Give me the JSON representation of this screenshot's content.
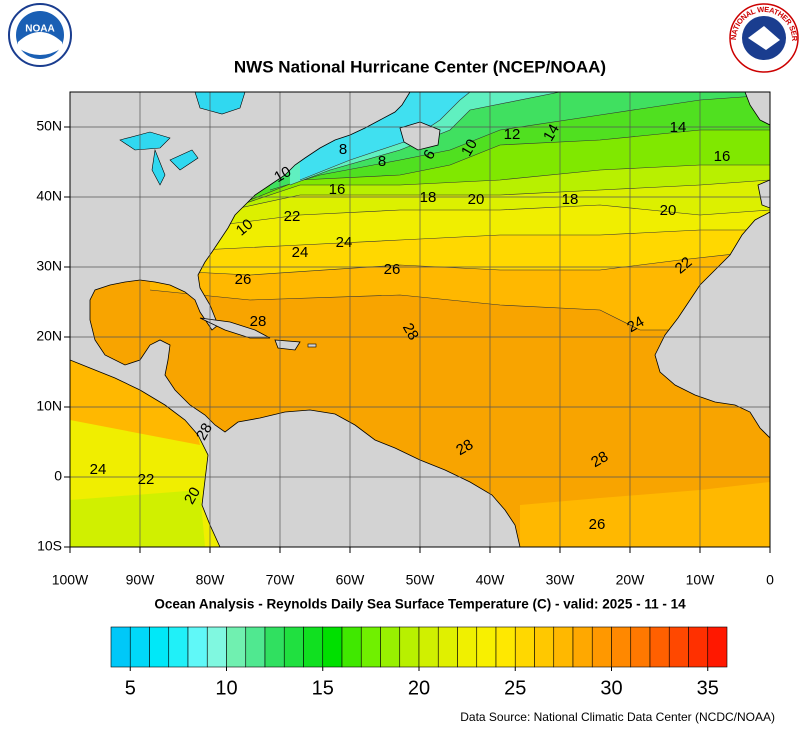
{
  "header": {
    "title": "NWS National Hurricane Center (NCEP/NOAA)",
    "noaa_logo": "NOAA",
    "nws_logo": "NATIONAL WEATHER SERVICE"
  },
  "map": {
    "xlim": [
      -100,
      0
    ],
    "ylim": [
      -10,
      55
    ],
    "xticks": [
      {
        "value": -100,
        "label": "100W"
      },
      {
        "value": -90,
        "label": "90W"
      },
      {
        "value": -80,
        "label": "80W"
      },
      {
        "value": -70,
        "label": "70W"
      },
      {
        "value": -60,
        "label": "60W"
      },
      {
        "value": -50,
        "label": "50W"
      },
      {
        "value": -40,
        "label": "40W"
      },
      {
        "value": -30,
        "label": "30W"
      },
      {
        "value": -20,
        "label": "20W"
      },
      {
        "value": -10,
        "label": "10W"
      },
      0
    ],
    "yticks": [
      {
        "value": 50,
        "label": "50N"
      },
      {
        "value": 40,
        "label": "40N"
      },
      {
        "value": 30,
        "label": "30N"
      },
      {
        "value": 20,
        "label": "20N"
      },
      {
        "value": 10,
        "label": "10N"
      },
      0,
      {
        "value": -10,
        "label": "10S"
      }
    ],
    "grid": true,
    "contour_labels": [
      10,
      12,
      14,
      14,
      16,
      8,
      8,
      6,
      10,
      16,
      18,
      20,
      18,
      20,
      22,
      10,
      24,
      24,
      26,
      22,
      26,
      28,
      28,
      24,
      28,
      28,
      28,
      24,
      22,
      20,
      26
    ]
  },
  "subtitle": "Ocean Analysis - Reynolds Daily Sea Surface Temperature (C) - valid: 2025 - 11 - 14",
  "colorbar": {
    "range": [
      4,
      36
    ],
    "ticks": [
      5,
      10,
      15,
      20,
      25,
      30,
      35
    ],
    "colors": [
      "#00c8f8",
      "#00d8f8",
      "#00e8f8",
      "#20f0f8",
      "#60f8f8",
      "#80f8e0",
      "#70f0b0",
      "#50e890",
      "#30e060",
      "#20e040",
      "#10e020",
      "#00e000",
      "#40e800",
      "#70f000",
      "#98f000",
      "#b8f000",
      "#d0f000",
      "#e0f000",
      "#f0f000",
      "#f8f000",
      "#ffe800",
      "#ffd800",
      "#ffc800",
      "#ffb800",
      "#ffa800",
      "#ff9800",
      "#ff8800",
      "#ff7800",
      "#ff6000",
      "#ff4800",
      "#ff3000",
      "#ff1800"
    ]
  },
  "source": "Data Source: National Climatic Data Center (NCDC/NOAA)"
}
